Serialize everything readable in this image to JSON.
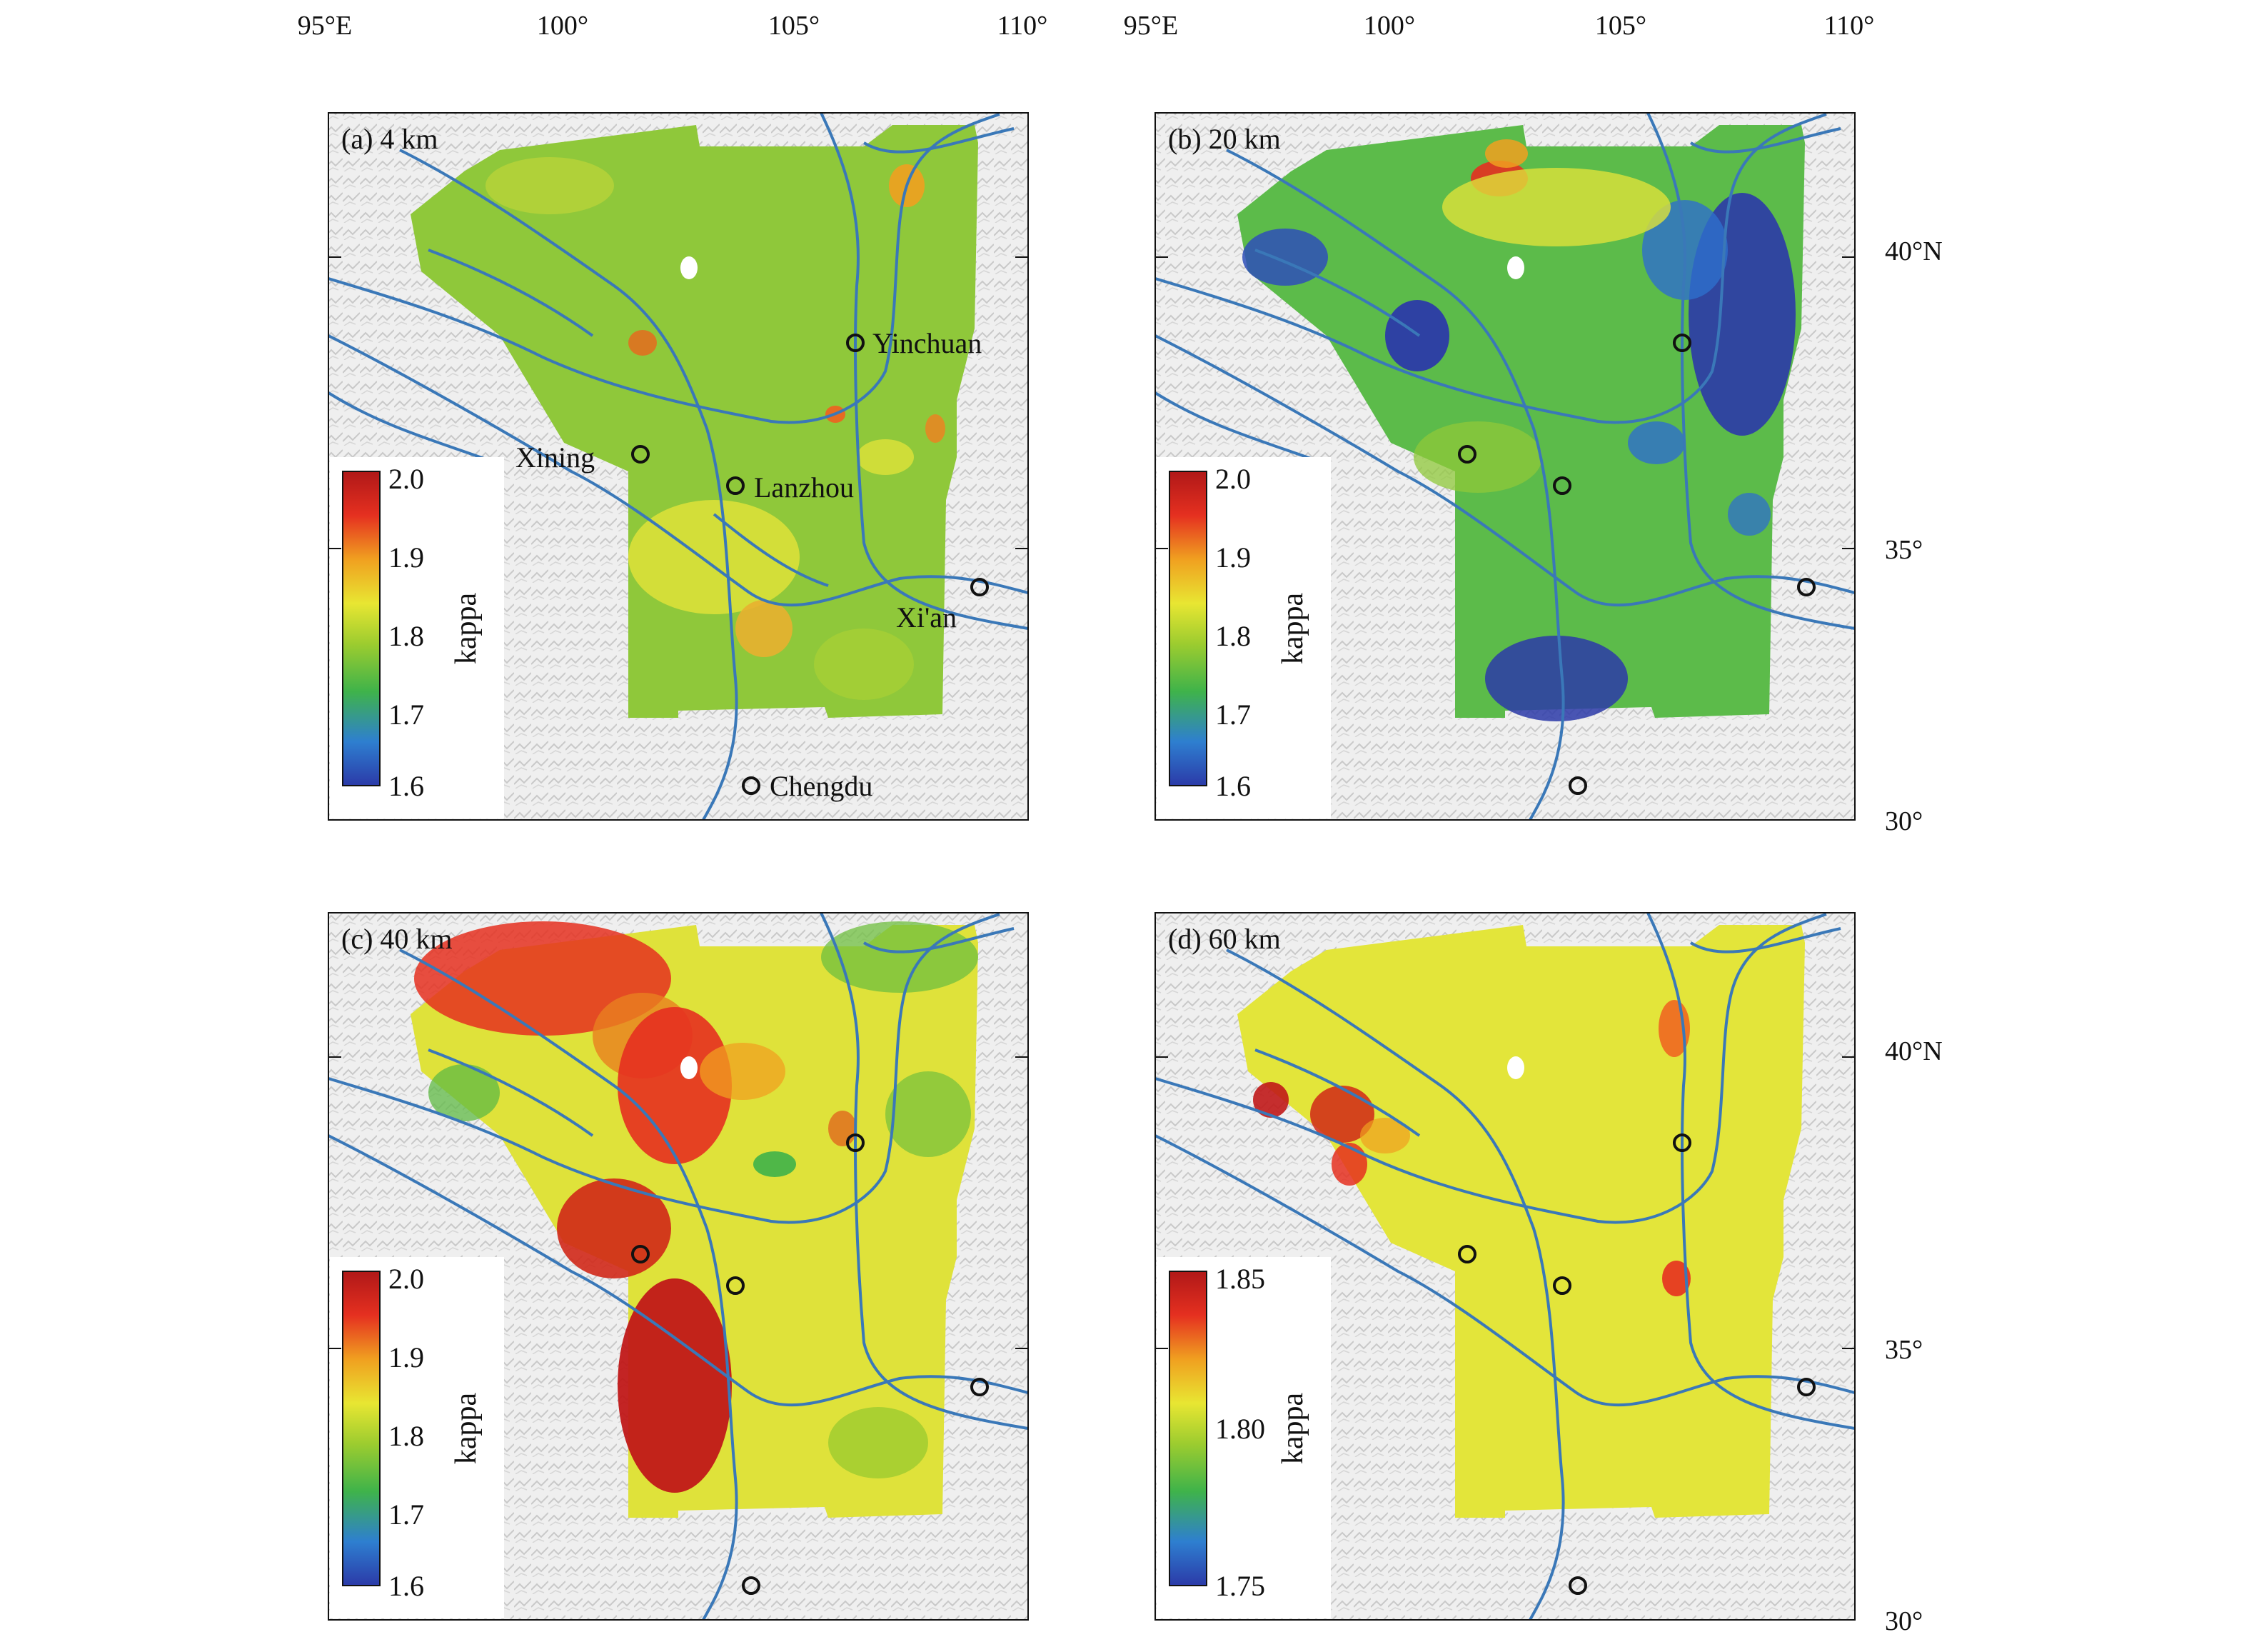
{
  "figure": {
    "axis_labels": {
      "lon_top": [
        "95°E",
        "100°",
        "105°",
        "110°"
      ],
      "lat_right": [
        "40°N",
        "35°",
        "30°"
      ]
    },
    "colors": {
      "kappa_scale": [
        "#2b3aa8",
        "#2e7fd0",
        "#3fb34a",
        "#9ccc2f",
        "#e8e632",
        "#f0a020",
        "#e53020",
        "#b01818"
      ],
      "fault_lines": "#3a78b8",
      "frame": "#111111",
      "terrain": "#d9d9d9"
    },
    "panels": [
      {
        "label": "(a) 4 km",
        "colorbar": {
          "title": "kappa",
          "ticks": [
            "2.0",
            "1.9",
            "1.8",
            "1.7",
            "1.6"
          ]
        },
        "dominant_color": "#8fc83a",
        "cities": [
          {
            "name": "Yinchuan",
            "shown": true
          },
          {
            "name": "Xining",
            "shown": true
          },
          {
            "name": "Lanzhou",
            "shown": true
          },
          {
            "name": "Xi'an",
            "shown": true
          },
          {
            "name": "Chengdu",
            "shown": true
          }
        ]
      },
      {
        "label": "(b) 20 km",
        "colorbar": {
          "title": "kappa",
          "ticks": [
            "2.0",
            "1.9",
            "1.8",
            "1.7",
            "1.6"
          ]
        },
        "dominant_color": "#5cbb4a"
      },
      {
        "label": "(c) 40 km",
        "colorbar": {
          "title": "kappa",
          "ticks": [
            "2.0",
            "1.9",
            "1.8",
            "1.7",
            "1.6"
          ]
        },
        "dominant_color": "#dfe23a"
      },
      {
        "label": "(d) 60 km",
        "colorbar": {
          "title": "kappa",
          "ticks": [
            "1.85",
            "1.80",
            "1.75"
          ]
        },
        "dominant_color": "#e3e53a"
      }
    ],
    "lat_right_top": [
      "40°N",
      "35°",
      "30°"
    ]
  }
}
